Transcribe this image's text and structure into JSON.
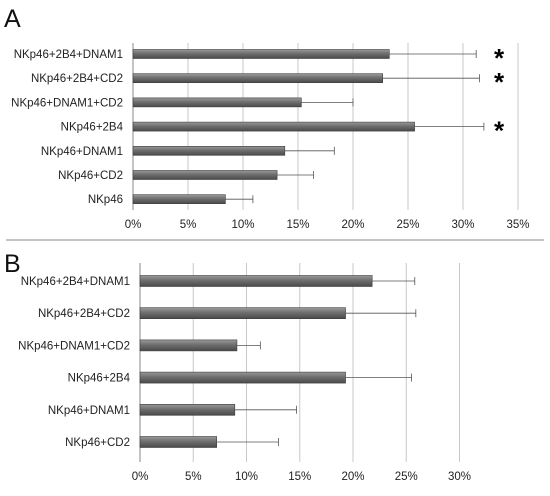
{
  "chart_data": [
    {
      "type": "bar",
      "orientation": "horizontal",
      "panel": "A",
      "categories": [
        "NKp46+2B4+DNAM1",
        "NKp46+2B4+CD2",
        "NKp46+DNAM1+CD2",
        "NKp46+2B4",
        "NKp46+DNAM1",
        "NKp46+CD2",
        "NKp46"
      ],
      "values": [
        23.3,
        22.7,
        15.3,
        25.6,
        13.8,
        13.1,
        8.4
      ],
      "error": [
        7.9,
        8.8,
        4.7,
        6.3,
        4.5,
        3.3,
        2.5
      ],
      "significance": [
        "*",
        "*",
        "",
        "*",
        "",
        "",
        ""
      ],
      "xlim": [
        0,
        35
      ],
      "xticks": [
        "0%",
        "5%",
        "10%",
        "15%",
        "20%",
        "25%",
        "30%",
        "35%"
      ],
      "grid": true,
      "bar_color": "#6b6b6b"
    },
    {
      "type": "bar",
      "orientation": "horizontal",
      "panel": "B",
      "categories": [
        "NKp46+2B4+DNAM1",
        "NKp46+2B4+CD2",
        "NKp46+DNAM1+CD2",
        "NKp46+2B4",
        "NKp46+DNAM1",
        "NKp46+CD2"
      ],
      "values": [
        21.8,
        19.3,
        9.1,
        19.3,
        8.9,
        7.2
      ],
      "error": [
        4.0,
        6.6,
        2.2,
        6.2,
        5.8,
        5.8
      ],
      "significance": [
        "",
        "",
        "",
        "",
        "",
        ""
      ],
      "xlim": [
        0,
        30
      ],
      "xticks": [
        "0%",
        "5%",
        "10%",
        "15%",
        "20%",
        "25%",
        "30%"
      ],
      "grid": true,
      "bar_color": "#6b6b6b"
    }
  ]
}
